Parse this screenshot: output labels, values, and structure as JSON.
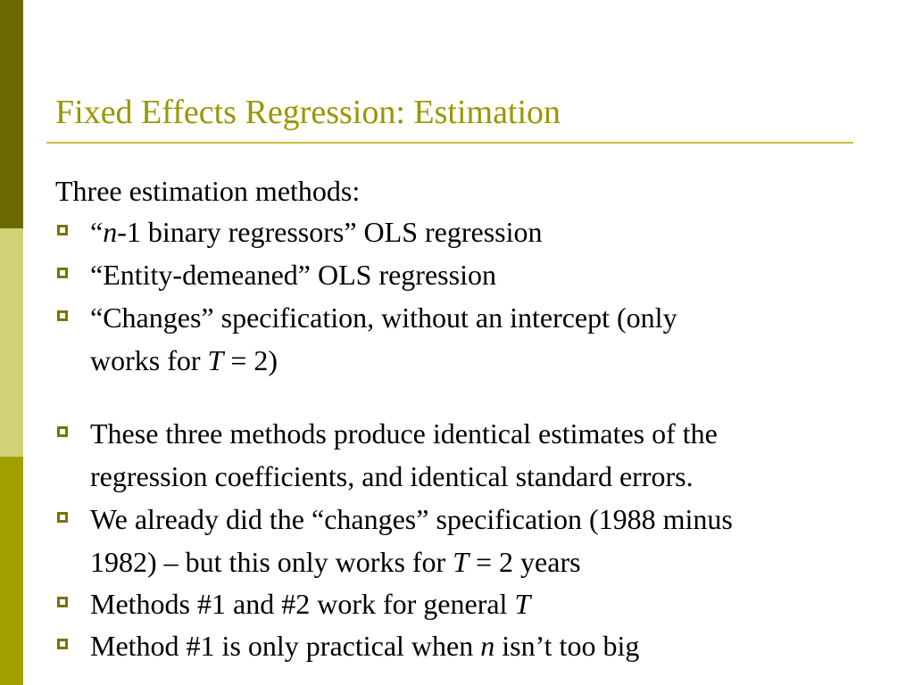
{
  "colors": {
    "title": "#9a9600",
    "bar_top": "#6b6a00",
    "bar_mid": "#d1d177",
    "bar_bottom": "#a2a000",
    "rule": "#c6c13a",
    "bullet": "#7a7300"
  },
  "slide": {
    "title": "Fixed Effects Regression: Estimation",
    "intro": "Three estimation methods:",
    "bullets": [
      {
        "lines": [
          [
            "“",
            {
              "i": "n"
            },
            "-1 binary regressors” OLS regression"
          ]
        ]
      },
      {
        "lines": [
          [
            "“Entity-demeaned” OLS regression"
          ]
        ]
      },
      {
        "lines": [
          [
            "“Changes” specification, without an intercept (only"
          ],
          [
            "works for ",
            {
              "i": "T"
            },
            " = 2)"
          ]
        ]
      },
      {
        "lines": [
          [
            "These three methods produce identical estimates of the"
          ],
          [
            "regression coefficients, and identical standard errors."
          ]
        ]
      },
      {
        "lines": [
          [
            "We already did the “changes” specification (1988 minus"
          ],
          [
            "1982) – but this only works for ",
            {
              "i": "T"
            },
            " = 2 years"
          ]
        ]
      },
      {
        "lines": [
          [
            "Methods #1 and #2 work for general ",
            {
              "i": "T"
            }
          ]
        ]
      },
      {
        "lines": [
          [
            "Method #1 is only practical when ",
            {
              "i": "n"
            },
            " isn’t too big"
          ]
        ]
      }
    ]
  }
}
